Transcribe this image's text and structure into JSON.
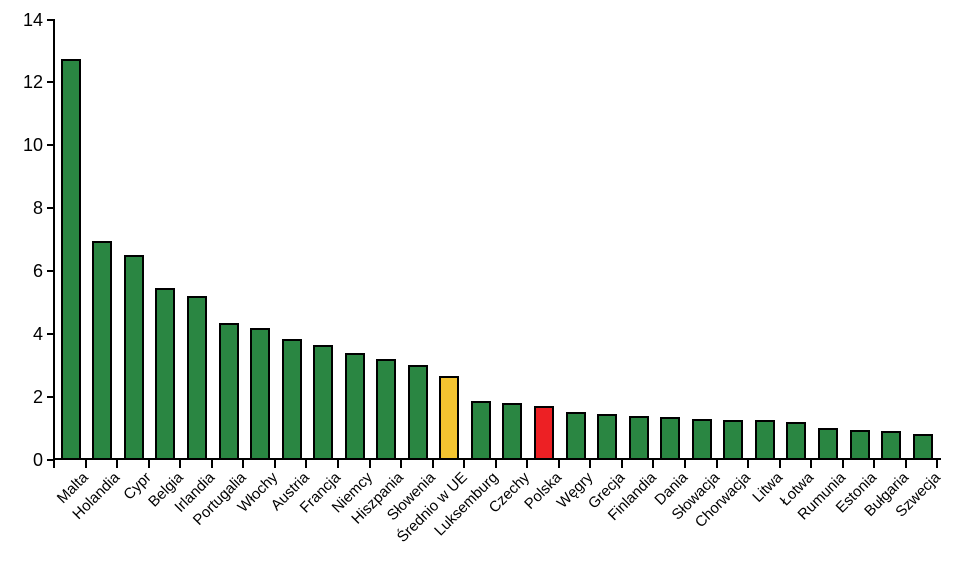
{
  "figure": {
    "background": "#ffffff"
  },
  "chart_data": {
    "type": "bar",
    "title": "",
    "xlabel": "",
    "ylabel": "",
    "categories": [
      "Malta",
      "Holandia",
      "Cypr",
      "Belgia",
      "Irlandia",
      "Portugalia",
      "Włochy",
      "Austria",
      "Francja",
      "Niemcy",
      "Hiszpania",
      "Słowenia",
      "Średnio w UE",
      "Luksemburg",
      "Czechy",
      "Polska",
      "Węgry",
      "Grecja",
      "Finlandia",
      "Dania",
      "Słowacja",
      "Chorwacja",
      "Litwa",
      "Łotwa",
      "Rumunia",
      "Estonia",
      "Bułgaria",
      "Szwecja"
    ],
    "values": [
      12.75,
      6.95,
      6.5,
      5.45,
      5.2,
      4.35,
      4.2,
      3.85,
      3.65,
      3.4,
      3.2,
      3.0,
      2.65,
      1.85,
      1.8,
      1.7,
      1.5,
      1.45,
      1.4,
      1.35,
      1.3,
      1.25,
      1.25,
      1.2,
      1.0,
      0.95,
      0.9,
      0.8
    ],
    "bar_colors": [
      "#2A8642",
      "#2A8642",
      "#2A8642",
      "#2A8642",
      "#2A8642",
      "#2A8642",
      "#2A8642",
      "#2A8642",
      "#2A8642",
      "#2A8642",
      "#2A8642",
      "#2A8642",
      "#F4C430",
      "#2A8642",
      "#2A8642",
      "#ED2024",
      "#2A8642",
      "#2A8642",
      "#2A8642",
      "#2A8642",
      "#2A8642",
      "#2A8642",
      "#2A8642",
      "#2A8642",
      "#2A8642",
      "#2A8642",
      "#2A8642",
      "#2A8642"
    ],
    "highlights": {
      "yellow_bar_category": "Średnio w UE",
      "red_bar_category": "Polska"
    },
    "colors": {
      "bar_default": "#2A8642",
      "bar_average": "#F4C430",
      "bar_red": "#ED2024",
      "bar_border": "#000000",
      "axis": "#000000",
      "text": "#000000"
    },
    "ylim": [
      0,
      14
    ],
    "yticks": [
      0,
      2,
      4,
      6,
      8,
      10,
      12,
      14
    ],
    "grid": false,
    "legend": false,
    "x_label_rotation_deg": 45
  }
}
